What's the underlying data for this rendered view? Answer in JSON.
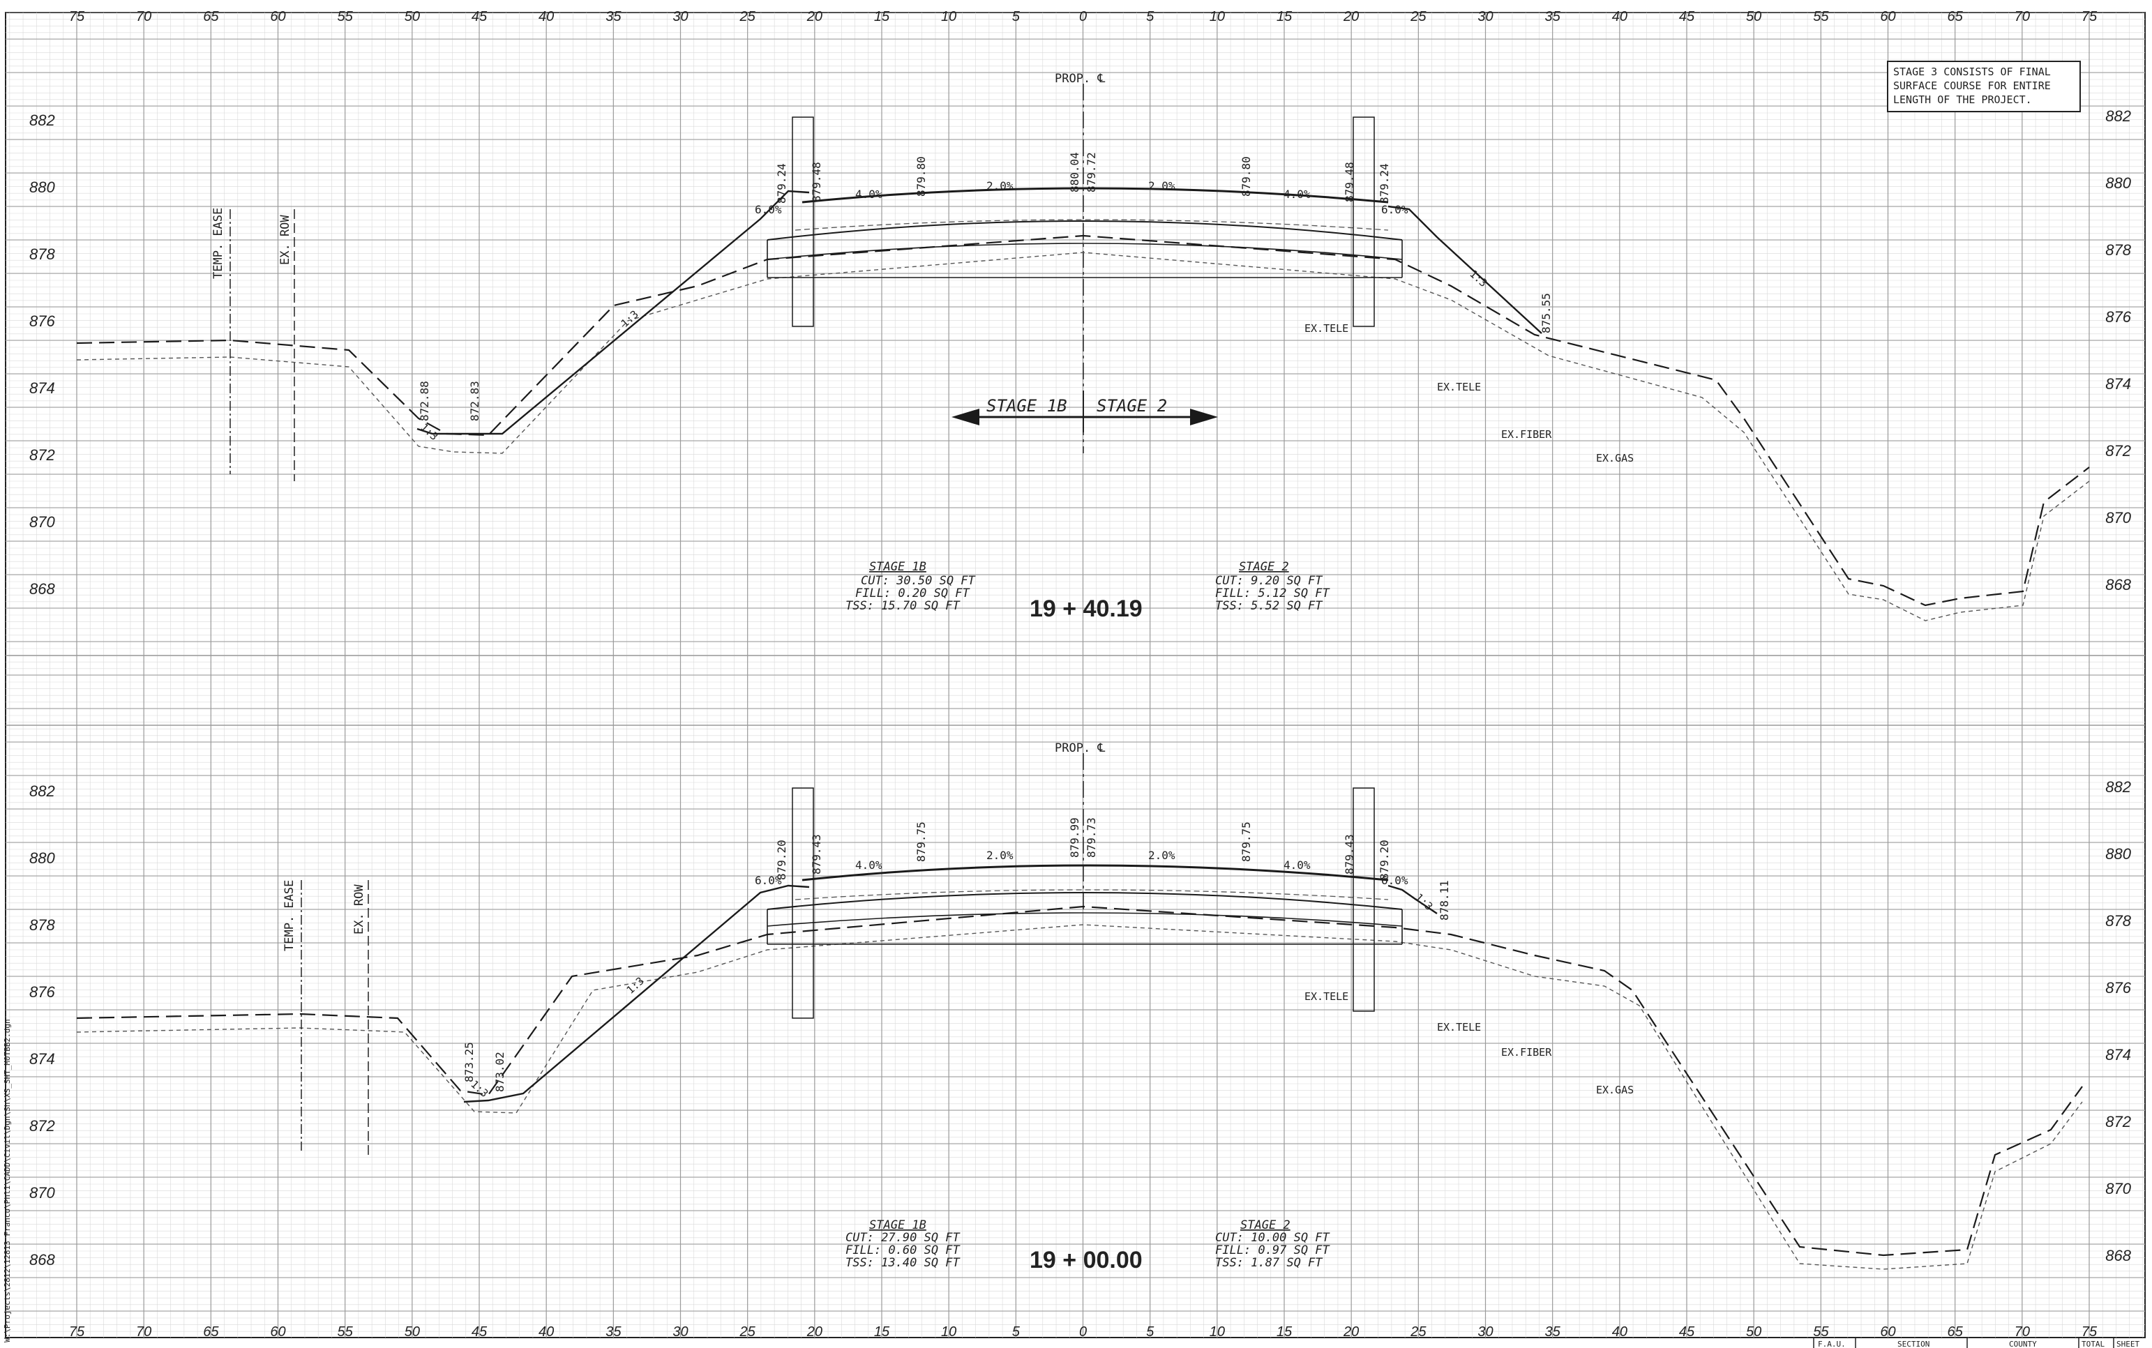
{
  "top_axis_labels": [
    "75",
    "70",
    "65",
    "60",
    "55",
    "50",
    "45",
    "40",
    "35",
    "30",
    "25",
    "20",
    "15",
    "10",
    "5",
    "0",
    "5",
    "10",
    "15",
    "20",
    "25",
    "30",
    "35",
    "40",
    "45",
    "50",
    "55",
    "60",
    "65",
    "70",
    "75"
  ],
  "bottom_axis_labels": [
    "75",
    "70",
    "65",
    "60",
    "55",
    "50",
    "45",
    "40",
    "35",
    "30",
    "25",
    "20",
    "15",
    "10",
    "5",
    "0",
    "5",
    "10",
    "15",
    "20",
    "25",
    "30",
    "35",
    "40",
    "45",
    "50",
    "55",
    "60",
    "65",
    "70",
    "75"
  ],
  "elevation_labels": [
    "882",
    "880",
    "878",
    "876",
    "874",
    "872",
    "870",
    "868"
  ],
  "note": {
    "lines": [
      "STAGE 3 CONSISTS OF FINAL",
      "SURFACE COURSE FOR ENTIRE",
      "LENGTH OF THE PROJECT."
    ]
  },
  "file_path": "W:\\Projects\\2812\\12813 Franco\\Phl1\\CADD\\Civil\\Dgn\\Sh\\XS_SHT_M0TBB2.dgn",
  "title_block": [
    "F.A.U.",
    "SECTION",
    "COUNTY",
    "TOTAL",
    "SHEET"
  ],
  "sections": [
    {
      "station": "19 + 40.19",
      "prop_cl": "PROP. ℄",
      "temp_ease": "TEMP. EASE",
      "ex_row": "EX. ROW",
      "stage_arrow": {
        "left": "STAGE 1B",
        "right": "STAGE 2"
      },
      "stage_1b": {
        "title": "STAGE 1B",
        "cut": "CUT: 30.50 SQ FT",
        "fill": "FILL: 0.20 SQ FT",
        "tss": "TSS: 15.70 SQ FT"
      },
      "stage_2": {
        "title": "STAGE 2",
        "cut": "CUT: 9.20 SQ FT",
        "fill": "FILL: 5.12 SQ FT",
        "tss": "TSS: 5.52 SQ FT"
      },
      "elevations": [
        "879.24",
        "879.48",
        "879.80",
        "880.04",
        "879.72",
        "879.80",
        "879.48",
        "879.24"
      ],
      "slopes": [
        "6.0%",
        "4.0%",
        "2.0%",
        "2.0%",
        "4.0%",
        "6.0%"
      ],
      "slope_ratios": [
        "1:3",
        "1:3",
        "1:3"
      ],
      "ditch_elevations": [
        "872.88",
        "872.83",
        "875.55"
      ],
      "utilities": [
        "EX.TELE",
        "EX.TELE",
        "EX.FIBER",
        "EX.GAS"
      ]
    },
    {
      "station": "19 + 00.00",
      "prop_cl": "PROP. ℄",
      "temp_ease": "TEMP. EASE",
      "ex_row": "EX. ROW",
      "stage_1b": {
        "title": "STAGE 1B",
        "cut": "CUT: 27.90 SQ FT",
        "fill": "FILL: 0.60 SQ FT",
        "tss": "TSS: 13.40 SQ FT"
      },
      "stage_2": {
        "title": "STAGE 2",
        "cut": "CUT: 10.00 SQ FT",
        "fill": "FILL: 0.97 SQ FT",
        "tss": "TSS: 1.87 SQ FT"
      },
      "elevations": [
        "879.20",
        "879.43",
        "879.75",
        "879.99",
        "879.73",
        "879.75",
        "879.43",
        "879.20"
      ],
      "slopes": [
        "6.0%",
        "4.0%",
        "2.0%",
        "2.0%",
        "4.0%",
        "6.0%"
      ],
      "slope_ratios": [
        "1:3",
        "1:3",
        "1:3",
        "1:4"
      ],
      "ditch_elevations": [
        "873.25",
        "873.02",
        "878.11"
      ],
      "utilities": [
        "EX.TELE",
        "EX.TELE",
        "EX.FIBER",
        "EX.GAS"
      ]
    }
  ],
  "colors": {
    "grid_minor": "#d9d9d9",
    "grid_major": "#9a9a9a",
    "line": "#1a1a1a",
    "text": "#222222"
  }
}
